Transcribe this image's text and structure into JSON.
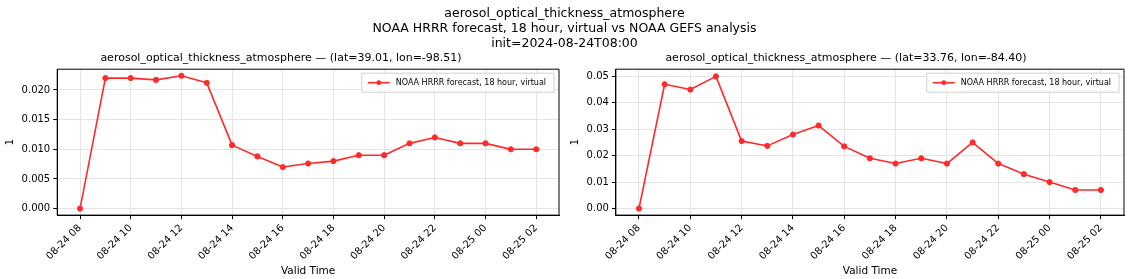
{
  "chart_data": [
    {
      "type": "other",
      "title": "aerosol_optical_thickness_atmosphere",
      "subtitle": "NOAA HRRR forecast, 18 hour, virtual vs NOAA GEFS analysis",
      "annotations": [
        "init=2024-08-24T08:00"
      ]
    },
    {
      "type": "line",
      "title": "aerosol_optical_thickness_atmosphere — (lat=39.01, lon=-98.51)",
      "xlabel": "Valid Time",
      "ylabel": "1",
      "x": [
        "2024-08-24T08:00",
        "2024-08-24T09:00",
        "2024-08-24T10:00",
        "2024-08-24T11:00",
        "2024-08-24T12:00",
        "2024-08-24T13:00",
        "2024-08-24T14:00",
        "2024-08-24T15:00",
        "2024-08-24T16:00",
        "2024-08-24T17:00",
        "2024-08-24T18:00",
        "2024-08-24T19:00",
        "2024-08-24T20:00",
        "2024-08-24T21:00",
        "2024-08-24T22:00",
        "2024-08-24T23:00",
        "2024-08-25T00:00",
        "2024-08-25T01:00",
        "2024-08-25T02:00"
      ],
      "series": [
        {
          "name": "NOAA HRRR forecast, 18 hour, virtual",
          "color": "#ff2a2a",
          "values": [
            0,
            0.022,
            0.022,
            0.0217,
            0.0224,
            0.0212,
            0.0107,
            0.0088,
            0.007,
            0.0076,
            0.008,
            0.009,
            0.009,
            0.011,
            0.012,
            0.011,
            0.011,
            0.01,
            0.01
          ]
        }
      ],
      "xlim": [
        "2024-08-24T07:06",
        "2024-08-25T02:54"
      ],
      "xticks": [
        {
          "value": "2024-08-24T08:00",
          "label": "08-24 08"
        },
        {
          "value": "2024-08-24T10:00",
          "label": "08-24 10"
        },
        {
          "value": "2024-08-24T12:00",
          "label": "08-24 12"
        },
        {
          "value": "2024-08-24T14:00",
          "label": "08-24 14"
        },
        {
          "value": "2024-08-24T16:00",
          "label": "08-24 16"
        },
        {
          "value": "2024-08-24T18:00",
          "label": "08-24 18"
        },
        {
          "value": "2024-08-24T20:00",
          "label": "08-24 20"
        },
        {
          "value": "2024-08-24T22:00",
          "label": "08-24 22"
        },
        {
          "value": "2024-08-25T00:00",
          "label": "08-25 00"
        },
        {
          "value": "2024-08-25T02:00",
          "label": "08-25 02"
        }
      ],
      "ylim": [
        -0.0011,
        0.0235
      ],
      "yticks": [
        {
          "value": 0,
          "label": "0.000"
        },
        {
          "value": 0.005,
          "label": "0.005"
        },
        {
          "value": 0.01,
          "label": "0.010"
        },
        {
          "value": 0.015,
          "label": "0.015"
        },
        {
          "value": 0.02,
          "label": "0.020"
        }
      ],
      "grid": true,
      "legend": "top right",
      "marker": "circle",
      "line_style": "solid"
    },
    {
      "type": "line",
      "title": "aerosol_optical_thickness_atmosphere — (lat=33.76, lon=-84.40)",
      "xlabel": "Valid Time",
      "ylabel": "1",
      "x": [
        "2024-08-24T08:00",
        "2024-08-24T09:00",
        "2024-08-24T10:00",
        "2024-08-24T11:00",
        "2024-08-24T12:00",
        "2024-08-24T13:00",
        "2024-08-24T14:00",
        "2024-08-24T15:00",
        "2024-08-24T16:00",
        "2024-08-24T17:00",
        "2024-08-24T18:00",
        "2024-08-24T19:00",
        "2024-08-24T20:00",
        "2024-08-24T21:00",
        "2024-08-24T22:00",
        "2024-08-24T23:00",
        "2024-08-25T00:00",
        "2024-08-25T01:00",
        "2024-08-25T02:00"
      ],
      "series": [
        {
          "name": "NOAA HRRR forecast, 18 hour, virtual",
          "color": "#ff2a2a",
          "values": [
            0,
            0.047,
            0.045,
            0.05,
            0.0255,
            0.0237,
            0.028,
            0.0314,
            0.0235,
            0.019,
            0.017,
            0.019,
            0.017,
            0.025,
            0.017,
            0.013,
            0.01,
            0.007,
            0.007
          ]
        }
      ],
      "xlim": [
        "2024-08-24T07:06",
        "2024-08-25T02:54"
      ],
      "xticks": [
        {
          "value": "2024-08-24T08:00",
          "label": "08-24 08"
        },
        {
          "value": "2024-08-24T10:00",
          "label": "08-24 10"
        },
        {
          "value": "2024-08-24T12:00",
          "label": "08-24 12"
        },
        {
          "value": "2024-08-24T14:00",
          "label": "08-24 14"
        },
        {
          "value": "2024-08-24T16:00",
          "label": "08-24 16"
        },
        {
          "value": "2024-08-24T18:00",
          "label": "08-24 18"
        },
        {
          "value": "2024-08-24T20:00",
          "label": "08-24 20"
        },
        {
          "value": "2024-08-24T22:00",
          "label": "08-24 22"
        },
        {
          "value": "2024-08-25T00:00",
          "label": "08-25 00"
        },
        {
          "value": "2024-08-25T02:00",
          "label": "08-25 02"
        }
      ],
      "ylim": [
        -0.0025,
        0.0527
      ],
      "yticks": [
        {
          "value": 0,
          "label": "0.00"
        },
        {
          "value": 0.01,
          "label": "0.01"
        },
        {
          "value": 0.02,
          "label": "0.02"
        },
        {
          "value": 0.03,
          "label": "0.03"
        },
        {
          "value": 0.04,
          "label": "0.04"
        },
        {
          "value": 0.05,
          "label": "0.05"
        }
      ],
      "grid": true,
      "legend": "top right",
      "marker": "circle",
      "line_style": "solid"
    }
  ]
}
